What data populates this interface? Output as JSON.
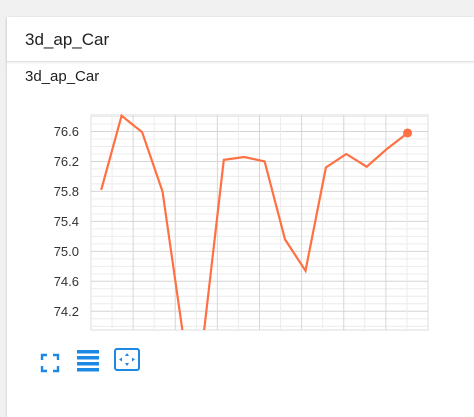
{
  "card": {
    "title": "3d_ap_Car"
  },
  "chart_data": {
    "type": "line",
    "title": "3d_ap_Car",
    "xlabel": "",
    "ylabel": "",
    "x": [
      1,
      2,
      3,
      4,
      5,
      6,
      7,
      8,
      9,
      10,
      11,
      12,
      13,
      14,
      15,
      16
    ],
    "series": [
      {
        "values": [
          75.82,
          76.81,
          76.59,
          75.8,
          73.9,
          73.85,
          76.22,
          76.26,
          76.2,
          75.16,
          74.74,
          76.12,
          76.3,
          76.13,
          76.37,
          76.58
        ],
        "color": "#ff7043"
      }
    ],
    "ylim": [
      73.95,
      76.82
    ],
    "y_ticks": [
      "74.2",
      "74.6",
      "75.0",
      "75.4",
      "75.8",
      "76.2",
      "76.6"
    ],
    "grid": true,
    "legend": "none",
    "last_point_marker": true
  },
  "toolbar": {
    "icons": [
      "fit-screen-icon",
      "list-lines-icon",
      "select-area-icon"
    ],
    "accent_color": "#1e88e5"
  }
}
